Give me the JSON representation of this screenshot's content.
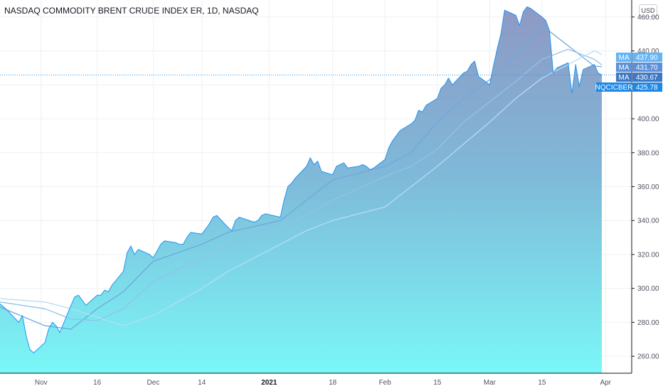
{
  "header": {
    "title": "NASDAQ COMMODITY BRENT CRUDE INDEX ER, 1D, NASDAQ",
    "currency": "USD"
  },
  "chart_data": {
    "type": "area",
    "ylim": [
      250,
      470
    ],
    "y_ticks": [
      260,
      280,
      300,
      320,
      340,
      360,
      380,
      400,
      420,
      440,
      460
    ],
    "y_tick_labels": [
      "260.00",
      "280.00",
      "300.00",
      "320.00",
      "340.00",
      "360.00",
      "380.00",
      "400.00",
      "420.00",
      "440.00",
      "460.00"
    ],
    "x_ticks": [
      {
        "label": "Nov",
        "date": "2020-11-01",
        "bold": false
      },
      {
        "label": "16",
        "date": "2020-11-16",
        "bold": false
      },
      {
        "label": "Dec",
        "date": "2020-12-01",
        "bold": false
      },
      {
        "label": "14",
        "date": "2020-12-14",
        "bold": false
      },
      {
        "label": "2021",
        "date": "2021-01-01",
        "bold": true
      },
      {
        "label": "18",
        "date": "2021-01-18",
        "bold": false
      },
      {
        "label": "Feb",
        "date": "2021-02-01",
        "bold": false
      },
      {
        "label": "15",
        "date": "2021-02-15",
        "bold": false
      },
      {
        "label": "Mar",
        "date": "2021-03-01",
        "bold": false
      },
      {
        "label": "15",
        "date": "2021-03-15",
        "bold": false
      },
      {
        "label": "Apr",
        "date": "2021-04-01",
        "bold": false
      }
    ],
    "x_range": [
      "2020-10-21",
      "2021-04-08"
    ],
    "current_price_line": 425.78,
    "series": [
      {
        "name": "NQCICBER",
        "kind": "price",
        "color": "#2196f3",
        "last_value": 425.78,
        "points": [
          [
            "2020-10-21",
            291
          ],
          [
            "2020-10-22",
            289
          ],
          [
            "2020-10-23",
            287
          ],
          [
            "2020-10-26",
            280
          ],
          [
            "2020-10-27",
            284
          ],
          [
            "2020-10-28",
            272
          ],
          [
            "2020-10-29",
            264
          ],
          [
            "2020-10-30",
            262
          ],
          [
            "2020-11-02",
            268
          ],
          [
            "2020-11-03",
            276
          ],
          [
            "2020-11-04",
            280
          ],
          [
            "2020-11-05",
            278
          ],
          [
            "2020-11-06",
            274
          ],
          [
            "2020-11-09",
            290
          ],
          [
            "2020-11-10",
            295
          ],
          [
            "2020-11-11",
            296
          ],
          [
            "2020-11-12",
            293
          ],
          [
            "2020-11-13",
            290
          ],
          [
            "2020-11-16",
            296
          ],
          [
            "2020-11-17",
            296
          ],
          [
            "2020-11-18",
            299
          ],
          [
            "2020-11-19",
            298
          ],
          [
            "2020-11-20",
            302
          ],
          [
            "2020-11-23",
            310
          ],
          [
            "2020-11-24",
            321
          ],
          [
            "2020-11-25",
            325
          ],
          [
            "2020-11-26",
            320
          ],
          [
            "2020-11-27",
            323
          ],
          [
            "2020-11-30",
            320
          ],
          [
            "2020-12-01",
            318
          ],
          [
            "2020-12-02",
            322
          ],
          [
            "2020-12-03",
            326
          ],
          [
            "2020-12-04",
            328
          ],
          [
            "2020-12-07",
            327
          ],
          [
            "2020-12-08",
            326
          ],
          [
            "2020-12-09",
            326
          ],
          [
            "2020-12-10",
            330
          ],
          [
            "2020-12-11",
            333
          ],
          [
            "2020-12-14",
            332
          ],
          [
            "2020-12-15",
            335
          ],
          [
            "2020-12-16",
            338
          ],
          [
            "2020-12-17",
            342
          ],
          [
            "2020-12-18",
            343
          ],
          [
            "2020-12-21",
            336
          ],
          [
            "2020-12-22",
            334
          ],
          [
            "2020-12-23",
            340
          ],
          [
            "2020-12-24",
            342
          ],
          [
            "2020-12-28",
            339
          ],
          [
            "2020-12-29",
            340
          ],
          [
            "2020-12-30",
            343
          ],
          [
            "2020-12-31",
            344
          ],
          [
            "2021-01-04",
            342
          ],
          [
            "2021-01-05",
            352
          ],
          [
            "2021-01-06",
            360
          ],
          [
            "2021-01-07",
            362
          ],
          [
            "2021-01-08",
            365
          ],
          [
            "2021-01-11",
            372
          ],
          [
            "2021-01-12",
            377
          ],
          [
            "2021-01-13",
            373
          ],
          [
            "2021-01-14",
            375
          ],
          [
            "2021-01-15",
            369
          ],
          [
            "2021-01-18",
            367
          ],
          [
            "2021-01-19",
            372
          ],
          [
            "2021-01-20",
            373
          ],
          [
            "2021-01-21",
            374
          ],
          [
            "2021-01-22",
            371
          ],
          [
            "2021-01-25",
            372
          ],
          [
            "2021-01-26",
            373
          ],
          [
            "2021-01-27",
            372
          ],
          [
            "2021-01-28",
            370
          ],
          [
            "2021-01-29",
            371
          ],
          [
            "2021-02-01",
            376
          ],
          [
            "2021-02-02",
            383
          ],
          [
            "2021-02-03",
            387
          ],
          [
            "2021-02-04",
            390
          ],
          [
            "2021-02-05",
            393
          ],
          [
            "2021-02-08",
            397
          ],
          [
            "2021-02-09",
            399
          ],
          [
            "2021-02-10",
            405
          ],
          [
            "2021-02-11",
            404
          ],
          [
            "2021-02-12",
            408
          ],
          [
            "2021-02-15",
            412
          ],
          [
            "2021-02-16",
            418
          ],
          [
            "2021-02-17",
            420
          ],
          [
            "2021-02-18",
            424
          ],
          [
            "2021-02-19",
            420
          ],
          [
            "2021-02-22",
            427
          ],
          [
            "2021-02-23",
            428
          ],
          [
            "2021-02-24",
            432
          ],
          [
            "2021-02-25",
            434
          ],
          [
            "2021-02-26",
            425
          ],
          [
            "2021-03-01",
            420
          ],
          [
            "2021-03-02",
            431
          ],
          [
            "2021-03-03",
            441
          ],
          [
            "2021-03-04",
            450
          ],
          [
            "2021-03-05",
            464
          ],
          [
            "2021-03-08",
            461
          ],
          [
            "2021-03-09",
            455
          ],
          [
            "2021-03-10",
            463
          ],
          [
            "2021-03-11",
            466
          ],
          [
            "2021-03-12",
            465
          ],
          [
            "2021-03-15",
            460
          ],
          [
            "2021-03-16",
            458
          ],
          [
            "2021-03-17",
            452
          ],
          [
            "2021-03-18",
            427
          ],
          [
            "2021-03-19",
            430
          ],
          [
            "2021-03-22",
            433
          ],
          [
            "2021-03-23",
            415
          ],
          [
            "2021-03-24",
            432
          ],
          [
            "2021-03-25",
            419
          ],
          [
            "2021-03-26",
            429
          ],
          [
            "2021-03-29",
            432
          ],
          [
            "2021-03-30",
            427
          ],
          [
            "2021-03-31",
            425.78
          ]
        ]
      },
      {
        "name": "MA",
        "kind": "ma",
        "color": "#6fa8dc",
        "last_value": 430.67,
        "points": [
          [
            "2020-10-21",
            289
          ],
          [
            "2020-11-02",
            278
          ],
          [
            "2020-11-09",
            276
          ],
          [
            "2020-11-16",
            288
          ],
          [
            "2020-11-23",
            298
          ],
          [
            "2020-12-01",
            316
          ],
          [
            "2020-12-14",
            326
          ],
          [
            "2020-12-21",
            333
          ],
          [
            "2021-01-04",
            340
          ],
          [
            "2021-01-11",
            352
          ],
          [
            "2021-01-18",
            364
          ],
          [
            "2021-02-01",
            372
          ],
          [
            "2021-02-08",
            380
          ],
          [
            "2021-02-15",
            398
          ],
          [
            "2021-02-22",
            412
          ],
          [
            "2021-03-01",
            423
          ],
          [
            "2021-03-08",
            437
          ],
          [
            "2021-03-15",
            455
          ],
          [
            "2021-03-22",
            443
          ],
          [
            "2021-03-29",
            431
          ],
          [
            "2021-03-31",
            430.67
          ]
        ]
      },
      {
        "name": "MA",
        "kind": "ma",
        "color": "#8fc3ea",
        "last_value": 431.7,
        "points": [
          [
            "2020-10-21",
            292
          ],
          [
            "2020-11-02",
            288
          ],
          [
            "2020-11-09",
            282
          ],
          [
            "2020-11-16",
            281
          ],
          [
            "2020-11-23",
            288
          ],
          [
            "2020-12-01",
            304
          ],
          [
            "2020-12-14",
            318
          ],
          [
            "2020-12-21",
            325
          ],
          [
            "2021-01-04",
            336
          ],
          [
            "2021-01-11",
            343
          ],
          [
            "2021-01-18",
            352
          ],
          [
            "2021-02-01",
            366
          ],
          [
            "2021-02-08",
            372
          ],
          [
            "2021-02-15",
            382
          ],
          [
            "2021-02-22",
            398
          ],
          [
            "2021-03-01",
            410
          ],
          [
            "2021-03-08",
            422
          ],
          [
            "2021-03-15",
            435
          ],
          [
            "2021-03-22",
            441
          ],
          [
            "2021-03-29",
            435
          ],
          [
            "2021-03-31",
            431.7
          ]
        ]
      },
      {
        "name": "MA",
        "kind": "ma",
        "color": "#b7dcf5",
        "last_value": 437.9,
        "points": [
          [
            "2020-10-21",
            294
          ],
          [
            "2020-11-02",
            292
          ],
          [
            "2020-11-09",
            288
          ],
          [
            "2020-11-16",
            283
          ],
          [
            "2020-11-23",
            278
          ],
          [
            "2020-12-01",
            284
          ],
          [
            "2020-12-14",
            300
          ],
          [
            "2020-12-21",
            310
          ],
          [
            "2021-01-04",
            326
          ],
          [
            "2021-01-11",
            334
          ],
          [
            "2021-01-18",
            340
          ],
          [
            "2021-02-01",
            348
          ],
          [
            "2021-02-08",
            360
          ],
          [
            "2021-02-15",
            372
          ],
          [
            "2021-02-22",
            385
          ],
          [
            "2021-03-01",
            398
          ],
          [
            "2021-03-08",
            412
          ],
          [
            "2021-03-15",
            424
          ],
          [
            "2021-03-22",
            432
          ],
          [
            "2021-03-29",
            440
          ],
          [
            "2021-03-31",
            437.9
          ]
        ]
      }
    ],
    "price_tags": [
      {
        "label": "MA",
        "value_text": "437.90",
        "color": "#64b5f6"
      },
      {
        "label": "MA",
        "value_text": "431.70",
        "color": "#5c8fd6"
      },
      {
        "label": "MA",
        "value_text": "430.67",
        "color": "#3f78c4"
      },
      {
        "label": "NQCICBER",
        "value_text": "425.78",
        "color": "#1e88e5"
      }
    ]
  }
}
